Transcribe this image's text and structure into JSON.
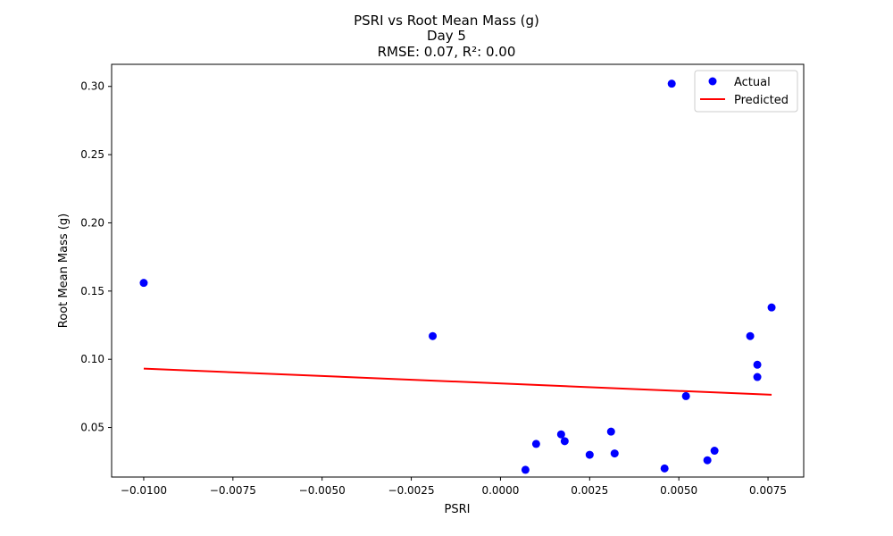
{
  "chart_data": {
    "type": "scatter",
    "title": "PSRI vs Root Mean Mass (g)",
    "subtitle": "Day 5",
    "metrics": "RMSE: 0.07, R²: 0.00",
    "xlabel": "PSRI",
    "ylabel": "Root Mean Mass (g)",
    "xlim": [
      -0.0109,
      0.0085
    ],
    "ylim": [
      0.0137,
      0.3162
    ],
    "x_ticks": [
      -0.01,
      -0.0075,
      -0.005,
      -0.0025,
      0.0,
      0.0025,
      0.005,
      0.0075
    ],
    "x_tick_labels": [
      "−0.0100",
      "−0.0075",
      "−0.0050",
      "−0.0025",
      "0.0000",
      "0.0025",
      "0.0050",
      "0.0075"
    ],
    "y_ticks": [
      0.05,
      0.1,
      0.15,
      0.2,
      0.25,
      0.3
    ],
    "y_tick_labels": [
      "0.05",
      "0.10",
      "0.15",
      "0.20",
      "0.25",
      "0.30"
    ],
    "grid": false,
    "legend_position": "top-right",
    "series": [
      {
        "name": "Actual",
        "kind": "scatter",
        "color": "#0000ff",
        "points": [
          {
            "x": -0.01,
            "y": 0.156
          },
          {
            "x": -0.0019,
            "y": 0.117
          },
          {
            "x": 0.0007,
            "y": 0.019
          },
          {
            "x": 0.001,
            "y": 0.038
          },
          {
            "x": 0.0017,
            "y": 0.045
          },
          {
            "x": 0.0018,
            "y": 0.04
          },
          {
            "x": 0.0025,
            "y": 0.03
          },
          {
            "x": 0.0031,
            "y": 0.047
          },
          {
            "x": 0.0032,
            "y": 0.031
          },
          {
            "x": 0.0046,
            "y": 0.02
          },
          {
            "x": 0.0048,
            "y": 0.302
          },
          {
            "x": 0.0052,
            "y": 0.073
          },
          {
            "x": 0.0058,
            "y": 0.026
          },
          {
            "x": 0.006,
            "y": 0.033
          },
          {
            "x": 0.007,
            "y": 0.117
          },
          {
            "x": 0.0072,
            "y": 0.087
          },
          {
            "x": 0.0072,
            "y": 0.096
          },
          {
            "x": 0.0076,
            "y": 0.138
          }
        ]
      },
      {
        "name": "Predicted",
        "kind": "line",
        "color": "#ff0000",
        "points": [
          {
            "x": -0.01,
            "y": 0.0932
          },
          {
            "x": 0.0076,
            "y": 0.074
          }
        ]
      }
    ]
  }
}
